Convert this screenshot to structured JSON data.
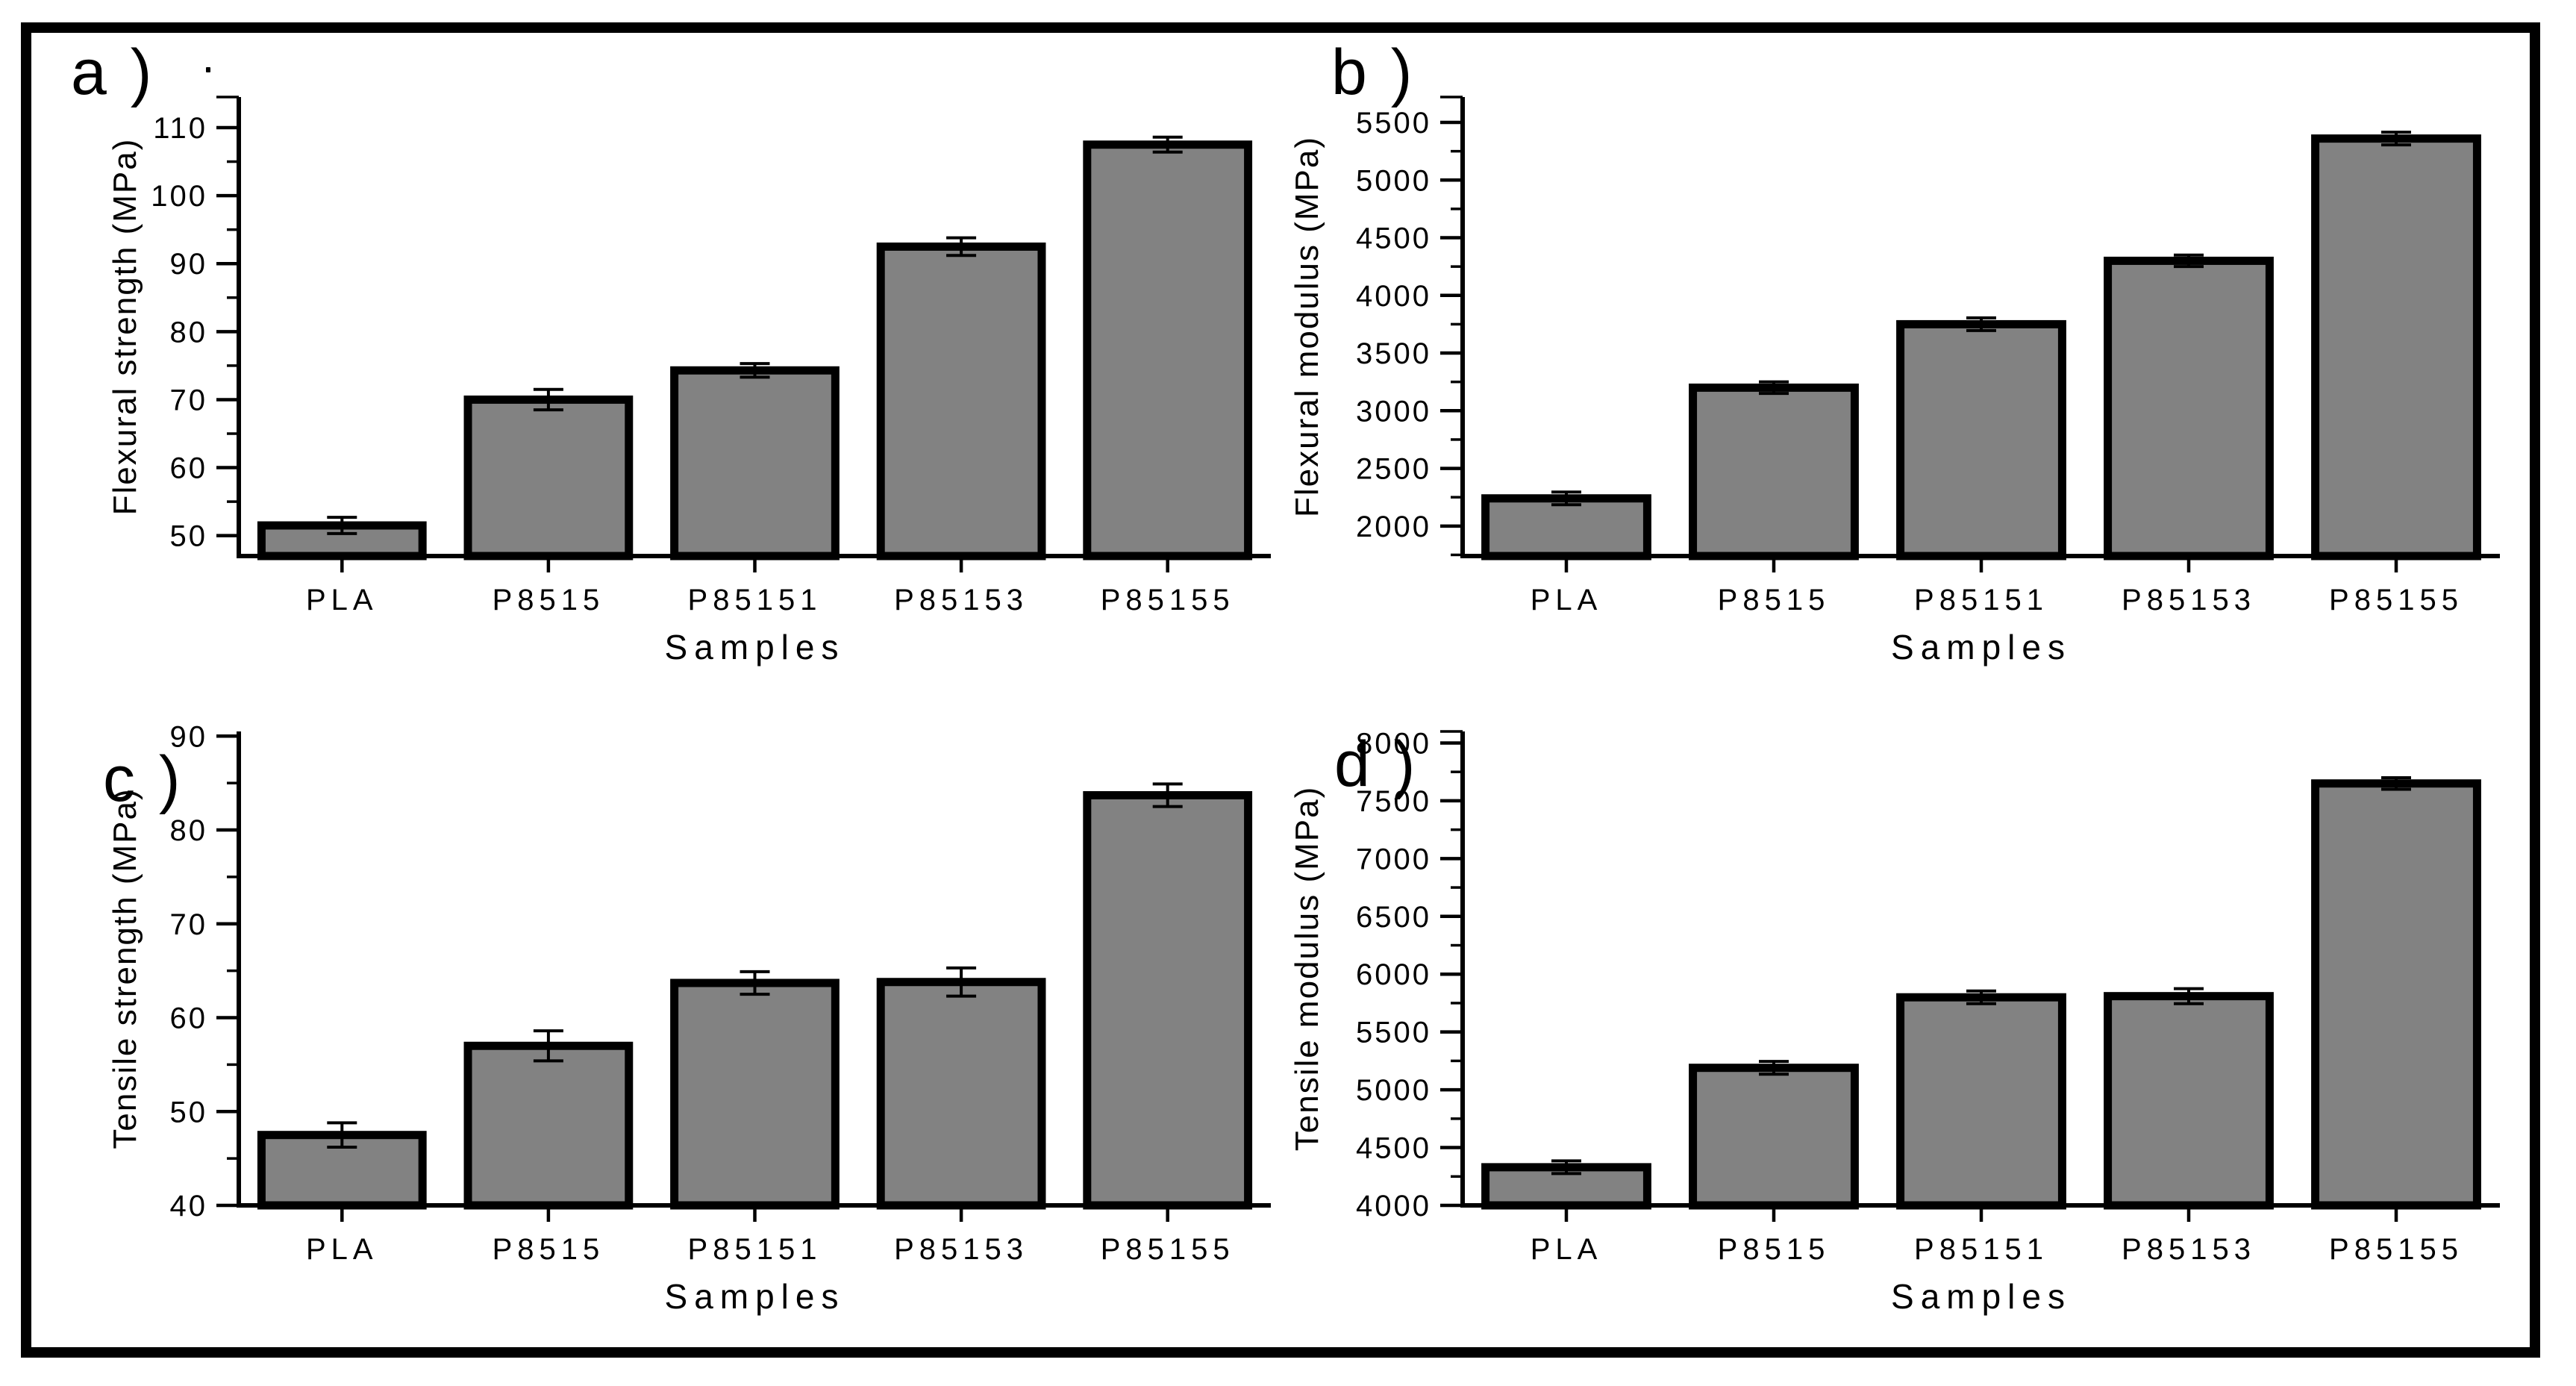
{
  "figure": {
    "background": "#ffffff",
    "frame_color": "#000000",
    "bar_fill": "#828282",
    "bar_stroke": "#000000",
    "categories": [
      "PLA",
      "P8515",
      "P85151",
      "P85153",
      "P85155"
    ],
    "xlabel": "Samples"
  },
  "chart_data": [
    {
      "id": "a",
      "type": "bar",
      "panel_label": "a )",
      "ylabel": "Flexural strength (MPa)",
      "xlabel": "Samples",
      "categories": [
        "PLA",
        "P8515",
        "P85151",
        "P85153",
        "P85155"
      ],
      "values": [
        51.5,
        70.0,
        74.3,
        92.5,
        107.5
      ],
      "errors": [
        1.2,
        1.5,
        1.0,
        1.3,
        1.1
      ],
      "yticks": [
        50,
        60,
        70,
        80,
        90,
        100,
        110
      ],
      "minor_step": 5,
      "ylim": [
        47,
        114.5
      ],
      "grid": false,
      "legend": false
    },
    {
      "id": "b",
      "type": "bar",
      "panel_label": "b )",
      "ylabel": "Flexural modulus (MPa)",
      "xlabel": "Samples",
      "categories": [
        "PLA",
        "P8515",
        "P85151",
        "P85153",
        "P85155"
      ],
      "values": [
        2240,
        3200,
        3750,
        4300,
        5360
      ],
      "errors": [
        55,
        50,
        55,
        50,
        55
      ],
      "yticks": [
        2000,
        2500,
        3000,
        3500,
        4000,
        4500,
        5000,
        5500
      ],
      "minor_step": 250,
      "ylim": [
        1740,
        5720
      ],
      "grid": false,
      "legend": false
    },
    {
      "id": "c",
      "type": "bar",
      "panel_label": "c )",
      "ylabel": "Tensile strength (MPa)",
      "xlabel": "Samples",
      "categories": [
        "PLA",
        "P8515",
        "P85151",
        "P85153",
        "P85155"
      ],
      "values": [
        47.5,
        57.0,
        63.7,
        63.8,
        83.7
      ],
      "errors": [
        1.3,
        1.6,
        1.2,
        1.5,
        1.2
      ],
      "yticks": [
        40,
        50,
        60,
        70,
        80,
        90
      ],
      "minor_step": 5,
      "ylim": [
        40,
        90.5
      ],
      "grid": false,
      "legend": false
    },
    {
      "id": "d",
      "type": "bar",
      "panel_label": "d )",
      "ylabel": "Tensile modulus (MPa)",
      "xlabel": "Samples",
      "categories": [
        "PLA",
        "P8515",
        "P85151",
        "P85153",
        "P85155"
      ],
      "values": [
        4330,
        5190,
        5800,
        5810,
        7650
      ],
      "errors": [
        55,
        55,
        55,
        65,
        50
      ],
      "yticks": [
        4000,
        4500,
        5000,
        5500,
        6000,
        6500,
        7000,
        7500,
        8000
      ],
      "minor_step": 250,
      "ylim": [
        4000,
        8100
      ],
      "grid": false,
      "legend": false
    }
  ]
}
